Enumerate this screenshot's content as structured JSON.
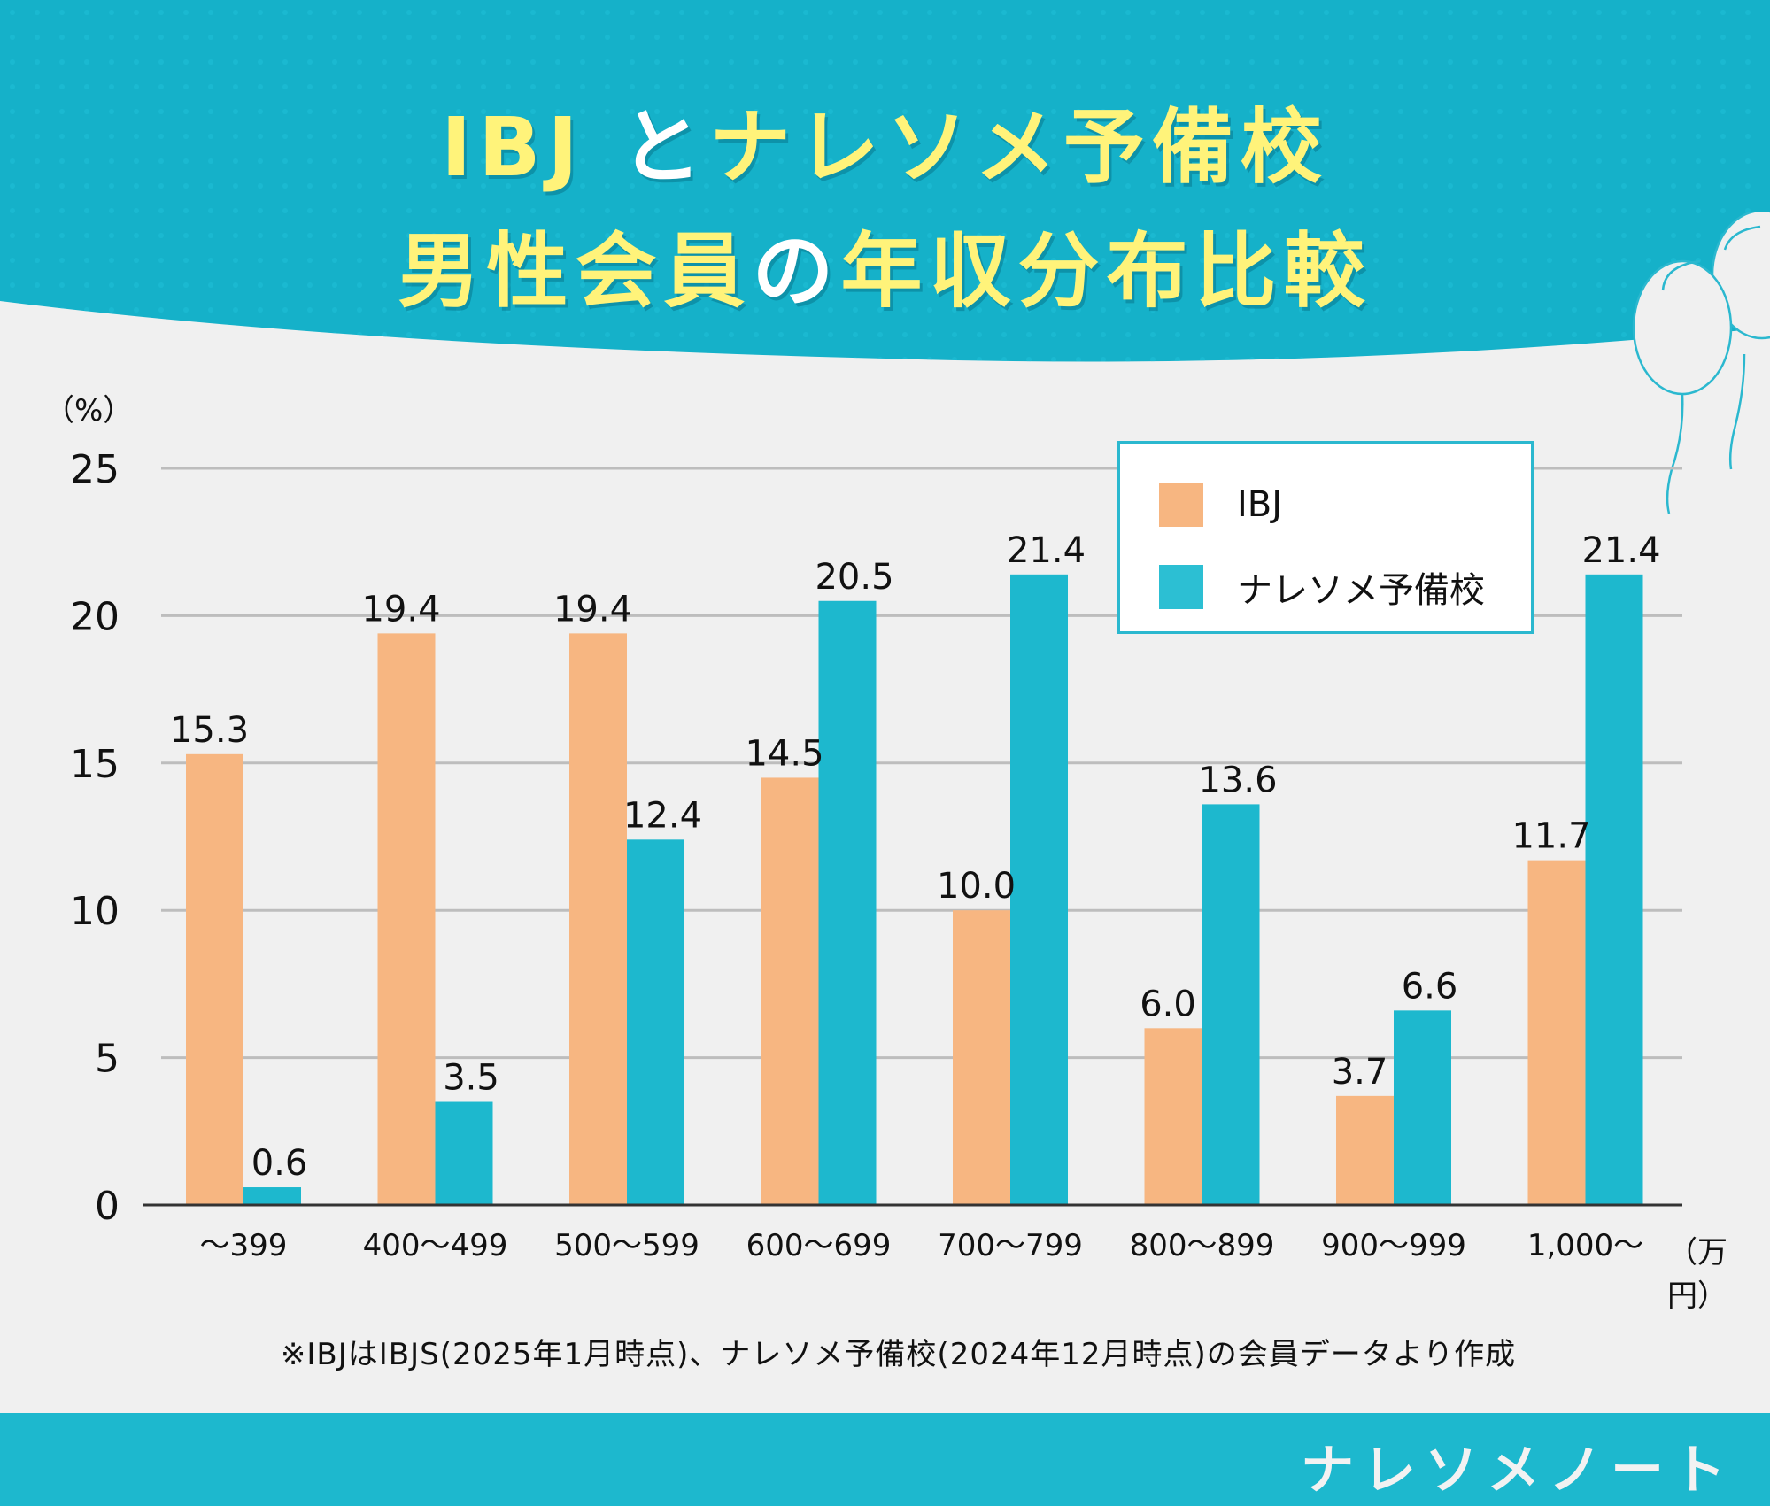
{
  "header": {
    "title_line1_parts": [
      {
        "text": "IBJ ",
        "color": "yellow"
      },
      {
        "text": "と",
        "color": "white"
      },
      {
        "text": "ナレソメ予備校",
        "color": "yellow"
      }
    ],
    "title_line2_parts": [
      {
        "text": "男性会員",
        "color": "yellow"
      },
      {
        "text": "の",
        "color": "white"
      },
      {
        "text": "年収分布比較",
        "color": "yellow"
      }
    ],
    "decoration": "balloons-icon"
  },
  "colors": {
    "header_bg": "#15b1c9",
    "title_yellow": "#fff37a",
    "ibj": "#f7b681",
    "narezome": "#1db8ce",
    "background": "#f0f0f0",
    "grid": "#bdbdbd",
    "axis": "#333333",
    "legend_border": "#2bb8cf",
    "footer": "#1db8ce"
  },
  "chart_data": {
    "type": "bar",
    "title": "IBJとナレソメ予備校 男性会員の年収分布比較",
    "ylabel": "（%）",
    "xlabel": "（万円）",
    "ylim": [
      0,
      25
    ],
    "yticks": [
      0,
      5,
      10,
      15,
      20,
      25
    ],
    "grid": true,
    "legend_position": "top-right",
    "categories": [
      "～399",
      "400～499",
      "500～599",
      "600～699",
      "700～799",
      "800～899",
      "900～999",
      "1,000～"
    ],
    "series": [
      {
        "name": "IBJ",
        "color": "#f7b681",
        "values": [
          15.3,
          19.4,
          19.4,
          14.5,
          10.0,
          6.0,
          3.7,
          11.7
        ],
        "labels": [
          "15.3",
          "19.4",
          "19.4",
          "14.5",
          "10.0",
          "6.0",
          "3.7",
          "11.7"
        ]
      },
      {
        "name": "ナレソメ予備校",
        "color": "#1db8ce",
        "values": [
          0.6,
          3.5,
          12.4,
          20.5,
          21.4,
          13.6,
          6.6,
          21.4
        ],
        "labels": [
          "0.6",
          "3.5",
          "12.4",
          "20.5",
          "21.4",
          "13.6",
          "6.6",
          "21.4"
        ]
      }
    ]
  },
  "legend": {
    "items": [
      {
        "label": "IBJ"
      },
      {
        "label": "ナレソメ予備校"
      }
    ]
  },
  "note": "※IBJはIBJS(2025年1月時点)、ナレソメ予備校(2024年12月時点)の会員データより作成",
  "footer": {
    "brand": "ナレソメノート"
  }
}
